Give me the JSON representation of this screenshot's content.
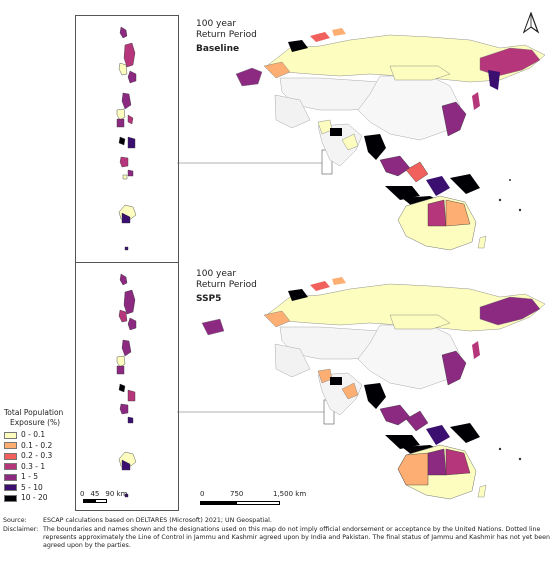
{
  "top_panel": {
    "return_period": "100 year\nReturn Period",
    "scenario": "Baseline"
  },
  "bottom_panel": {
    "return_period": "100 year\nReturn Period",
    "scenario": "SSP5"
  },
  "north_arrow": "A",
  "legend": {
    "title_line1": "Total Population",
    "title_line2": "Exposure (%)",
    "items": [
      {
        "label": "0 - 0.1",
        "color": "#fcfdbf"
      },
      {
        "label": "0.1 - 0.2",
        "color": "#fcae73"
      },
      {
        "label": "0.2 - 0.3",
        "color": "#f1605d"
      },
      {
        "label": "0.3 - 1",
        "color": "#b5367a"
      },
      {
        "label": "1 - 5",
        "color": "#8c2981"
      },
      {
        "label": "5 - 10",
        "color": "#3b0f70"
      },
      {
        "label": "10 - 20",
        "color": "#000004"
      }
    ]
  },
  "inset_scale": {
    "labels": [
      "0",
      "45",
      "90 km"
    ]
  },
  "main_scale": {
    "labels": [
      "0",
      "750",
      "1,500 km"
    ]
  },
  "footer": {
    "source_label": "Source:",
    "source_text": "ESCAP calculations based on DELTARES (Microsoft) 2021; UN Geospatial.",
    "disclaimer_label": "Disclaimer:",
    "disclaimer_text": "The boundaries and names shown and the designations used on this map do not imply official endorsement or acceptance by the United Nations. Dotted line represents approximately the Line of Control in Jammu and Kashmir agreed upon by India and Pakistan. The final status of Jammu and Kashmir has not yet been agreed upon by the parties."
  }
}
